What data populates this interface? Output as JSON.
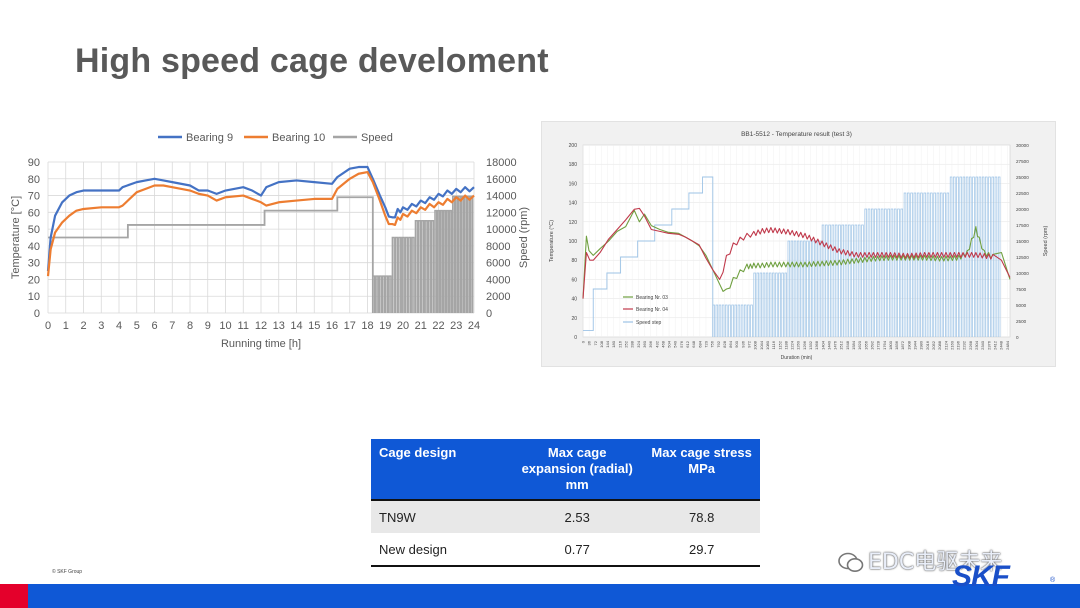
{
  "page": {
    "title": "High speed cage develoment",
    "copyright": "© SKF Group"
  },
  "branding": {
    "watermark": "EDC电驱未来",
    "logo": "SKF",
    "logo_mark": "®",
    "accent": "#0f58d6",
    "red": "#e4002b"
  },
  "chart_data": [
    {
      "type": "line",
      "xlabel": "Running time [h]",
      "ylabel": "Temperature [°C]",
      "y2label": "Speed (rpm)",
      "xlim": [
        0,
        24
      ],
      "ylim": [
        0,
        90
      ],
      "y2lim": [
        0,
        18000
      ],
      "xticks": [
        0,
        1,
        2,
        3,
        4,
        5,
        6,
        7,
        8,
        9,
        10,
        11,
        12,
        13,
        14,
        15,
        16,
        17,
        18,
        19,
        20,
        21,
        22,
        23,
        24
      ],
      "yticks": [
        0,
        10,
        20,
        30,
        40,
        50,
        60,
        70,
        80,
        90
      ],
      "y2ticks": [
        0,
        2000,
        4000,
        6000,
        8000,
        10000,
        12000,
        14000,
        16000,
        18000
      ],
      "legend": "top-center",
      "grid": true,
      "series": [
        {
          "name": "Bearing 9",
          "color": "#4472c4",
          "axis": "left",
          "x": [
            0,
            0.15,
            0.4,
            0.8,
            1.2,
            1.6,
            2,
            3,
            4,
            4.2,
            5,
            5.5,
            6,
            6.5,
            7,
            8,
            8.5,
            9,
            9.5,
            10,
            11,
            11.5,
            12,
            12.3,
            13,
            14,
            15,
            16,
            16.3,
            17,
            17.5,
            18,
            18.3,
            18.7,
            19,
            19.4,
            19.7,
            20,
            20.5,
            21,
            21.5,
            22,
            22.5,
            23,
            23.5,
            24
          ],
          "y": [
            25,
            45,
            58,
            66,
            70,
            72,
            73,
            73,
            73,
            75,
            78,
            79,
            80,
            79,
            78,
            76,
            73,
            73,
            71,
            73,
            75,
            73,
            70,
            75,
            78,
            79,
            78,
            77,
            81,
            86,
            87,
            87,
            80,
            70,
            63,
            57,
            62,
            63,
            65,
            67,
            69,
            71,
            73,
            74,
            75,
            75
          ]
        },
        {
          "name": "Bearing 10",
          "color": "#ed7d31",
          "axis": "left",
          "x": [
            0,
            0.15,
            0.4,
            0.8,
            1.2,
            1.6,
            2,
            3,
            4,
            4.2,
            5,
            5.5,
            6,
            6.5,
            7,
            8,
            8.5,
            9,
            9.5,
            10,
            11,
            11.5,
            12,
            12.3,
            13,
            14,
            15,
            16,
            16.3,
            17,
            17.5,
            18,
            18.3,
            18.7,
            19,
            19.4,
            19.7,
            20,
            20.5,
            21,
            21.5,
            22,
            22.5,
            23,
            23.5,
            24
          ],
          "y": [
            22,
            38,
            48,
            54,
            58,
            61,
            62,
            63,
            63,
            64,
            72,
            74,
            76,
            76,
            75,
            73,
            71,
            70,
            67,
            69,
            70,
            68,
            66,
            64,
            66,
            67,
            68,
            68,
            74,
            80,
            83,
            84,
            78,
            67,
            58,
            53,
            57,
            59,
            61,
            63,
            65,
            66,
            68,
            69,
            70,
            70
          ]
        },
        {
          "name": "Speed",
          "color": "#a5a5a5",
          "axis": "right",
          "steps": [
            [
              0,
              9000
            ],
            [
              4.5,
              10500
            ],
            [
              12.2,
              12200
            ],
            [
              16.3,
              13800
            ],
            [
              18.3,
              0
            ]
          ],
          "pulses": [
            {
              "x0": 18.3,
              "x1": 19.4,
              "value": 4400
            },
            {
              "x0": 19.4,
              "x1": 20.7,
              "value": 9000
            },
            {
              "x0": 20.7,
              "x1": 21.8,
              "value": 11000
            },
            {
              "x0": 21.8,
              "x1": 22.8,
              "value": 12200
            },
            {
              "x0": 22.8,
              "x1": 24,
              "value": 13900
            }
          ]
        }
      ]
    },
    {
      "type": "line",
      "title": "BB1-5512 - Temperature result (test 3)",
      "xlabel": "Duration (min)",
      "ylabel": "Temperature (°C)",
      "y2label": "Speed (rpm)",
      "xlim": [
        0,
        2500
      ],
      "ylim": [
        0,
        200
      ],
      "y2lim": [
        0,
        30000
      ],
      "yticks": [
        0,
        20,
        40,
        60,
        80,
        100,
        120,
        140,
        160,
        180,
        200
      ],
      "y2ticks": [
        0,
        2500,
        5000,
        7500,
        10000,
        12500,
        15000,
        17500,
        20000,
        22500,
        25000,
        27500,
        30000
      ],
      "xticks": [
        0,
        36,
        72,
        108,
        144,
        180,
        216,
        252,
        288,
        324,
        360,
        396,
        432,
        468,
        504,
        540,
        576,
        612,
        648,
        684,
        720,
        756,
        792,
        828,
        864,
        900,
        936,
        972,
        1008,
        1044,
        1080,
        1116,
        1152,
        1188,
        1224,
        1260,
        1296,
        1332,
        1368,
        1404,
        1440,
        1476,
        1512,
        1548,
        1584,
        1620,
        1656,
        1692,
        1728,
        1764,
        1800,
        1836,
        1872,
        1908,
        1944,
        1980,
        2016,
        2052,
        2088,
        2124,
        2160,
        2196,
        2232,
        2268,
        2304,
        2340,
        2376,
        2412,
        2448,
        2484
      ],
      "legend": "bottom-left",
      "grid": true,
      "series": [
        {
          "name": "Bearing Nr. 03",
          "color": "#70a041",
          "axis": "left",
          "x": [
            0,
            20,
            35,
            60,
            100,
            150,
            200,
            250,
            300,
            330,
            360,
            400,
            450,
            500,
            560,
            600,
            640,
            680,
            720,
            760,
            800,
            840,
            880,
            920,
            960,
            980,
            1000,
            1050,
            1100,
            1200,
            1300,
            1400,
            1500,
            1600,
            1700,
            1800,
            1900,
            2000,
            2100,
            2200,
            2250,
            2300,
            2320,
            2350,
            2400,
            2450,
            2500
          ],
          "y": [
            40,
            105,
            90,
            85,
            92,
            100,
            110,
            115,
            132,
            120,
            128,
            116,
            112,
            109,
            108,
            104,
            100,
            95,
            85,
            70,
            55,
            50,
            62,
            70,
            76,
            76,
            77,
            77,
            78,
            78,
            78,
            79,
            80,
            82,
            84,
            85,
            85,
            85,
            84,
            85,
            90,
            115,
            104,
            90,
            86,
            88,
            60
          ]
        },
        {
          "name": "Bearing Nr. 04",
          "color": "#c0394b",
          "axis": "left",
          "x": [
            0,
            20,
            40,
            60,
            100,
            150,
            200,
            250,
            300,
            330,
            360,
            400,
            450,
            500,
            560,
            600,
            640,
            680,
            720,
            760,
            800,
            840,
            880,
            920,
            960,
            1000,
            1050,
            1100,
            1150,
            1200,
            1300,
            1400,
            1500,
            1600,
            1700,
            1800,
            1900,
            2000,
            2100,
            2200,
            2300,
            2400,
            2450,
            2500
          ],
          "y": [
            40,
            88,
            80,
            80,
            88,
            102,
            112,
            122,
            133,
            134,
            126,
            112,
            110,
            108,
            107,
            104,
            100,
            96,
            82,
            70,
            60,
            85,
            98,
            104,
            108,
            110,
            113,
            114,
            113,
            112,
            108,
            100,
            92,
            88,
            88,
            88,
            87,
            88,
            88,
            88,
            88,
            86,
            80,
            62
          ]
        },
        {
          "name": "Speed step",
          "color": "#9dc3e6",
          "axis": "right",
          "steps": [
            [
              0,
              1000
            ],
            [
              60,
              7500
            ],
            [
              140,
              10000
            ],
            [
              220,
              12500
            ],
            [
              320,
              15000
            ],
            [
              420,
              17500
            ],
            [
              520,
              20000
            ],
            [
              620,
              22500
            ],
            [
              700,
              25000
            ],
            [
              760,
              0
            ]
          ],
          "pulses": [
            {
              "x0": 760,
              "x1": 1000,
              "value": 5000
            },
            {
              "x0": 1000,
              "x1": 1200,
              "value": 10000
            },
            {
              "x0": 1200,
              "x1": 1400,
              "value": 15000
            },
            {
              "x0": 1400,
              "x1": 1650,
              "value": 17500
            },
            {
              "x0": 1650,
              "x1": 1880,
              "value": 20000
            },
            {
              "x0": 1880,
              "x1": 2150,
              "value": 22500
            },
            {
              "x0": 2150,
              "x1": 2450,
              "value": 25000
            }
          ]
        }
      ]
    }
  ],
  "table": {
    "headers": [
      "Cage design",
      "Max cage expansion (radial) mm",
      "Max cage stress MPa"
    ],
    "rows": [
      [
        "TN9W",
        "2.53",
        "78.8"
      ],
      [
        "New design",
        "0.77",
        "29.7"
      ]
    ]
  }
}
